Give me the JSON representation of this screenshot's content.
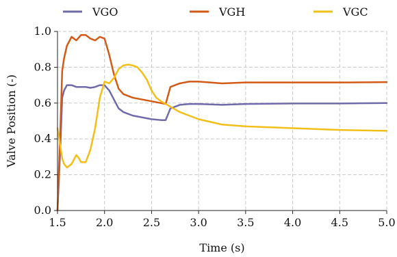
{
  "chart_data": {
    "type": "line",
    "title": "",
    "xlabel": "Time (s)",
    "ylabel": "Valve Position (-)",
    "xlim": [
      1.5,
      5.0
    ],
    "ylim": [
      0.0,
      1.0
    ],
    "xticks": [
      "1.5",
      "2.0",
      "2.5",
      "3.0",
      "3.5",
      "4.0",
      "4.5",
      "5.0"
    ],
    "yticks": [
      "0.0",
      "0.2",
      "0.4",
      "0.6",
      "0.8",
      "1.0"
    ],
    "grid": true,
    "legend_position": "top",
    "series": [
      {
        "name": "VGO",
        "color": "#6f6aa9",
        "x": [
          1.5,
          1.53,
          1.55,
          1.57,
          1.6,
          1.65,
          1.7,
          1.75,
          1.8,
          1.85,
          1.9,
          1.95,
          2.0,
          2.05,
          2.1,
          2.15,
          2.2,
          2.3,
          2.4,
          2.5,
          2.6,
          2.65,
          2.7,
          2.75,
          2.8,
          2.9,
          3.0,
          3.25,
          3.5,
          4.0,
          4.5,
          5.0
        ],
        "y": [
          0.0,
          0.35,
          0.63,
          0.67,
          0.7,
          0.7,
          0.69,
          0.69,
          0.69,
          0.685,
          0.69,
          0.7,
          0.7,
          0.67,
          0.62,
          0.57,
          0.55,
          0.53,
          0.52,
          0.51,
          0.505,
          0.505,
          0.57,
          0.58,
          0.59,
          0.595,
          0.595,
          0.59,
          0.595,
          0.598,
          0.598,
          0.6
        ]
      },
      {
        "name": "VGH",
        "color": "#d35a16",
        "x": [
          1.5,
          1.53,
          1.55,
          1.57,
          1.6,
          1.65,
          1.7,
          1.75,
          1.8,
          1.85,
          1.9,
          1.95,
          2.0,
          2.05,
          2.1,
          2.15,
          2.2,
          2.3,
          2.4,
          2.5,
          2.6,
          2.65,
          2.7,
          2.75,
          2.8,
          2.9,
          3.0,
          3.25,
          3.5,
          4.0,
          4.5,
          5.0
        ],
        "y": [
          0.0,
          0.45,
          0.78,
          0.85,
          0.92,
          0.97,
          0.95,
          0.98,
          0.98,
          0.96,
          0.95,
          0.97,
          0.96,
          0.87,
          0.76,
          0.68,
          0.65,
          0.63,
          0.62,
          0.61,
          0.6,
          0.595,
          0.69,
          0.7,
          0.71,
          0.72,
          0.72,
          0.71,
          0.715,
          0.715,
          0.715,
          0.717
        ]
      },
      {
        "name": "VGC",
        "color": "#f2bf19",
        "x": [
          1.5,
          1.53,
          1.55,
          1.57,
          1.6,
          1.65,
          1.7,
          1.73,
          1.75,
          1.8,
          1.85,
          1.9,
          1.95,
          2.0,
          2.05,
          2.1,
          2.15,
          2.2,
          2.25,
          2.3,
          2.35,
          2.4,
          2.45,
          2.5,
          2.55,
          2.6,
          2.7,
          2.8,
          3.0,
          3.25,
          3.5,
          4.0,
          4.5,
          5.0
        ],
        "y": [
          0.46,
          0.36,
          0.29,
          0.26,
          0.24,
          0.26,
          0.31,
          0.29,
          0.27,
          0.27,
          0.34,
          0.46,
          0.63,
          0.72,
          0.71,
          0.74,
          0.79,
          0.81,
          0.815,
          0.81,
          0.8,
          0.77,
          0.73,
          0.67,
          0.63,
          0.61,
          0.58,
          0.55,
          0.51,
          0.48,
          0.47,
          0.46,
          0.45,
          0.445
        ]
      }
    ]
  }
}
